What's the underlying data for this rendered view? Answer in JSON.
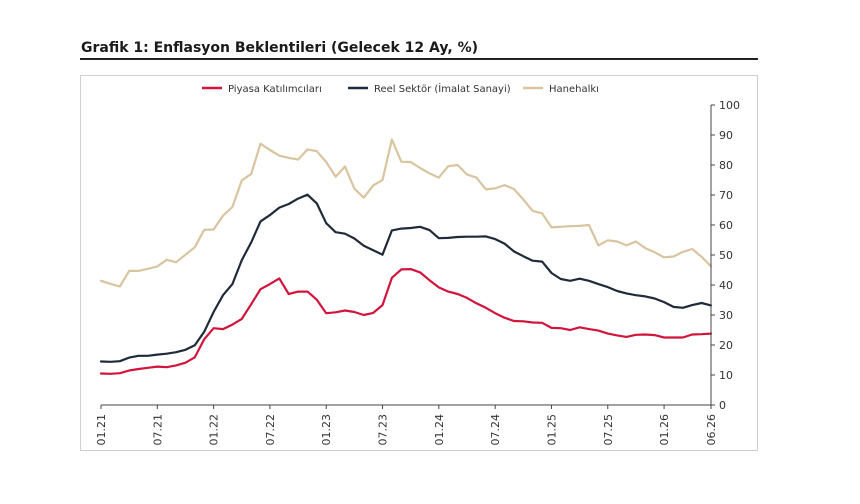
{
  "page": {
    "title": "Grafik 1: Enflasyon Beklentileri (Gelecek 12 Ay, %)"
  },
  "chart_data": {
    "type": "line",
    "title": "Grafik 1: Enflasyon Beklentileri (Gelecek 12 Ay, %)",
    "xlabel": "",
    "ylabel": "",
    "ylim": [
      0,
      100
    ],
    "y_axis_side": "right",
    "yticks": [
      0,
      10,
      20,
      30,
      40,
      50,
      60,
      70,
      80,
      90,
      100
    ],
    "x_tick_labels": [
      "01.21",
      "07.21",
      "01.22",
      "07.22",
      "01.23",
      "07.23",
      "01.24",
      "07.24",
      "01.25",
      "07.25",
      "01.26",
      "06.26"
    ],
    "x_tick_months": [
      0,
      6,
      12,
      18,
      24,
      30,
      36,
      42,
      48,
      54,
      60,
      65
    ],
    "legend_position": "top",
    "grid": false,
    "x_months": [
      0,
      1,
      2,
      3,
      4,
      5,
      6,
      7,
      8,
      9,
      10,
      11,
      12,
      13,
      14,
      15,
      16,
      17,
      18,
      19,
      20,
      21,
      22,
      23,
      24,
      25,
      26,
      27,
      28,
      29,
      30,
      31,
      32,
      33,
      34,
      35,
      36,
      37,
      38,
      39,
      40,
      41,
      42,
      43,
      44,
      45,
      46,
      47,
      48,
      49,
      50,
      51,
      52,
      53,
      54,
      55,
      56,
      57,
      58,
      59,
      60,
      61,
      62,
      63,
      64,
      65
    ],
    "series": [
      {
        "name": "Piyasa Katılımcıları",
        "color": "#d2143c",
        "values": [
          10.5,
          10.4,
          10.6,
          11.5,
          12.0,
          12.4,
          12.8,
          12.6,
          13.2,
          14.1,
          15.9,
          21.9,
          25.6,
          25.3,
          26.8,
          28.7,
          33.6,
          38.6,
          40.3,
          42.2,
          37.0,
          37.8,
          37.8,
          35.1,
          30.6,
          30.9,
          31.5,
          31.0,
          30.0,
          30.7,
          33.3,
          42.4,
          45.2,
          45.3,
          44.2,
          41.6,
          39.2,
          37.8,
          37.0,
          35.7,
          33.9,
          32.4,
          30.6,
          29.1,
          28.0,
          27.9,
          27.5,
          27.4,
          25.7,
          25.6,
          25.0,
          25.9,
          25.3,
          24.8,
          23.8,
          23.2,
          22.7,
          23.4,
          23.5,
          23.3,
          22.5,
          22.5,
          22.5,
          23.5,
          23.6,
          23.8
        ]
      },
      {
        "name": "Reel Sektör (İmalat Sanayi)",
        "color": "#1f2b3a",
        "values": [
          14.5,
          14.4,
          14.6,
          15.8,
          16.4,
          16.4,
          16.8,
          17.1,
          17.6,
          18.4,
          19.9,
          24.4,
          31.0,
          36.6,
          40.3,
          48.3,
          54.2,
          61.2,
          63.3,
          65.8,
          67.0,
          68.8,
          70.1,
          67.2,
          60.6,
          57.6,
          57.1,
          55.5,
          53.1,
          51.6,
          50.1,
          58.2,
          58.8,
          59.0,
          59.4,
          58.3,
          55.6,
          55.7,
          56.0,
          56.1,
          56.1,
          56.2,
          55.3,
          53.8,
          51.2,
          49.6,
          48.1,
          47.8,
          44.0,
          42.0,
          41.4,
          42.1,
          41.4,
          40.3,
          39.3,
          38.0,
          37.2,
          36.6,
          36.2,
          35.5,
          34.3,
          32.7,
          32.4,
          33.3,
          34.0,
          33.2
        ]
      },
      {
        "name": "Hanehalkı",
        "color": "#d9c4a0",
        "values": [
          41.4,
          40.4,
          39.5,
          44.7,
          44.7,
          45.4,
          46.2,
          48.4,
          47.6,
          50.1,
          52.6,
          58.4,
          58.5,
          63.1,
          66.0,
          74.9,
          77.0,
          87.1,
          85.0,
          83.1,
          82.4,
          81.8,
          85.2,
          84.6,
          81.0,
          76.1,
          79.5,
          72.1,
          69.1,
          73.2,
          75.0,
          88.5,
          81.1,
          81.0,
          79.0,
          77.2,
          75.8,
          79.6,
          80.0,
          76.8,
          75.8,
          71.9,
          72.2,
          73.3,
          72.0,
          68.5,
          64.7,
          63.9,
          59.2,
          59.4,
          59.6,
          59.7,
          60.0,
          53.2,
          54.9,
          54.5,
          53.2,
          54.5,
          52.3,
          50.9,
          49.2,
          49.5,
          51.0,
          52.0,
          49.4,
          46.2
        ]
      }
    ]
  }
}
